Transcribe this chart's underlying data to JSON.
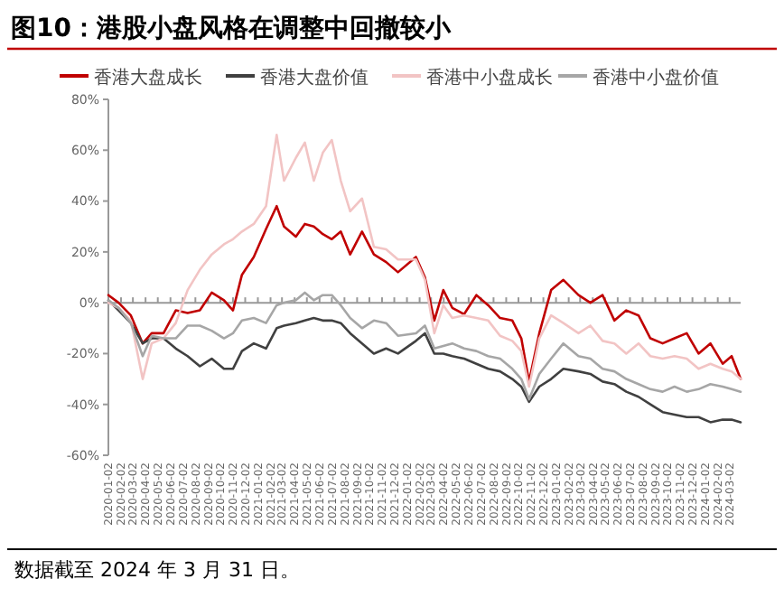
{
  "chart_data": {
    "type": "line",
    "title": "图10：港股小盘风格在调整中回撤较小",
    "annotations": [
      "数据截至 2024 年 3 月 31 日。"
    ],
    "x": [
      "2020-01-02",
      "2020-01-27",
      "2020-02-26",
      "2020-03-26",
      "2020-04-17",
      "2020-05-16",
      "2020-06-15",
      "2020-07-14",
      "2020-08-13",
      "2020-09-11",
      "2020-10-11",
      "2020-11-02",
      "2020-11-24",
      "2020-12-23",
      "2021-01-22",
      "2021-02-17",
      "2021-03-07",
      "2021-04-05",
      "2021-04-27",
      "2021-05-19",
      "2021-06-10",
      "2021-07-02",
      "2021-07-24",
      "2021-08-16",
      "2021-09-14",
      "2021-10-13",
      "2021-11-12",
      "2021-12-11",
      "2022-01-24",
      "2022-02-15",
      "2022-03-10",
      "2022-04-01",
      "2022-04-23",
      "2022-05-22",
      "2022-06-21",
      "2022-07-20",
      "2022-08-18",
      "2022-09-17",
      "2022-10-09",
      "2022-10-28",
      "2022-11-22",
      "2022-12-21",
      "2023-01-20",
      "2023-02-26",
      "2023-03-27",
      "2023-04-26",
      "2023-05-25",
      "2023-06-23",
      "2023-07-23",
      "2023-08-21",
      "2023-09-20",
      "2023-10-19",
      "2023-11-18",
      "2023-12-17",
      "2024-01-15",
      "2024-02-14",
      "2024-03-07",
      "2024-03-29"
    ],
    "series": [
      {
        "name": "香港大盘成长",
        "color": "#c00000",
        "values": [
          3,
          0,
          -5,
          -16,
          -12,
          -12,
          -3,
          -4,
          -3,
          4,
          1,
          -3,
          11,
          18,
          29,
          38,
          30,
          26,
          31,
          30,
          27,
          25,
          28,
          19,
          28,
          19,
          16,
          12,
          18,
          10,
          -7,
          5,
          -2,
          -4.5,
          3,
          -1,
          -6,
          -7,
          -14,
          -31,
          -12,
          5,
          9,
          3,
          0,
          3,
          -7,
          -3,
          -5,
          -14,
          -16,
          -14,
          -12,
          -20,
          -16,
          -24,
          -21,
          -30
        ]
      },
      {
        "name": "香港大盘价值",
        "color": "#404040",
        "values": [
          1,
          -3,
          -8,
          -16,
          -14,
          -14,
          -18,
          -21,
          -25,
          -22,
          -26,
          -26,
          -19,
          -16,
          -18,
          -10,
          -9,
          -8,
          -7,
          -6,
          -7,
          -7,
          -8,
          -12,
          -16,
          -20,
          -18,
          -20,
          -15,
          -12,
          -20,
          -20,
          -21,
          -22,
          -24,
          -26,
          -27,
          -30,
          -33,
          -39,
          -33,
          -30,
          -26,
          -27,
          -28,
          -31,
          -32,
          -35,
          -37,
          -40,
          -43,
          -44,
          -45,
          -45,
          -47,
          -46,
          -46,
          -47
        ]
      },
      {
        "name": "香港中小盘成长",
        "color": "#f2c4c4",
        "values": [
          0,
          -2,
          -7,
          -30,
          -16,
          -14,
          -8,
          5,
          13,
          19,
          23,
          25,
          28,
          31,
          38,
          66,
          48,
          57,
          63,
          48,
          59,
          64,
          48,
          36,
          41,
          22,
          21,
          17,
          17,
          9,
          -12,
          -1,
          -6,
          -5,
          -6,
          -7,
          -13,
          -15,
          -19,
          -33,
          -14,
          -5,
          -8,
          -12,
          -9,
          -15,
          -16,
          -20,
          -16,
          -21,
          -22,
          -21,
          -22,
          -26,
          -24,
          -26,
          -27,
          -30
        ]
      },
      {
        "name": "香港中小盘价值",
        "color": "#a6a6a6",
        "values": [
          1,
          -2,
          -8,
          -21,
          -13,
          -14,
          -14,
          -9,
          -9,
          -11,
          -14,
          -12,
          -7,
          -6,
          -8,
          -1,
          0,
          1,
          4,
          1,
          3,
          3,
          -1,
          -6,
          -10,
          -7,
          -8,
          -13,
          -12,
          -9,
          -18,
          -17,
          -16,
          -18,
          -19,
          -21,
          -22,
          -26,
          -30,
          -38,
          -28,
          -22,
          -16,
          -21,
          -22,
          -26,
          -27,
          -30,
          -32,
          -34,
          -35,
          -33,
          -35,
          -34,
          -32,
          -33,
          -34,
          -35
        ]
      }
    ],
    "xlim": [
      "2020-01-02",
      "2024-03-29"
    ],
    "xticks": [
      "2020-01-02",
      "2020-02-02",
      "2020-03-02",
      "2020-04-02",
      "2020-05-02",
      "2020-06-02",
      "2020-07-02",
      "2020-08-02",
      "2020-09-02",
      "2020-10-02",
      "2020-11-02",
      "2020-12-02",
      "2021-01-02",
      "2021-02-02",
      "2021-03-02",
      "2021-04-02",
      "2021-05-02",
      "2021-06-02",
      "2021-07-02",
      "2021-08-02",
      "2021-09-02",
      "2021-10-02",
      "2021-11-02",
      "2021-12-02",
      "2022-01-02",
      "2022-02-02",
      "2022-03-02",
      "2022-04-02",
      "2022-05-02",
      "2022-06-02",
      "2022-07-02",
      "2022-08-02",
      "2022-09-02",
      "2022-10-02",
      "2022-11-02",
      "2022-12-02",
      "2023-01-02",
      "2023-02-02",
      "2023-03-02",
      "2023-04-02",
      "2023-05-02",
      "2023-06-02",
      "2023-07-02",
      "2023-08-02",
      "2023-09-02",
      "2023-10-02",
      "2023-11-02",
      "2023-12-02",
      "2024-01-02",
      "2024-02-02",
      "2024-03-02"
    ],
    "ylim": [
      -60,
      80
    ],
    "yticks": [
      {
        "value": -60,
        "label": "-60%"
      },
      {
        "value": -40,
        "label": "-40%"
      },
      {
        "value": -20,
        "label": "-20%"
      },
      {
        "value": 0,
        "label": "0%"
      },
      {
        "value": 20,
        "label": "20%"
      },
      {
        "value": 40,
        "label": "40%"
      },
      {
        "value": 60,
        "label": "60%"
      },
      {
        "value": 80,
        "label": "80%"
      }
    ],
    "legend": "top",
    "marker": "none",
    "line_style": "solid"
  }
}
